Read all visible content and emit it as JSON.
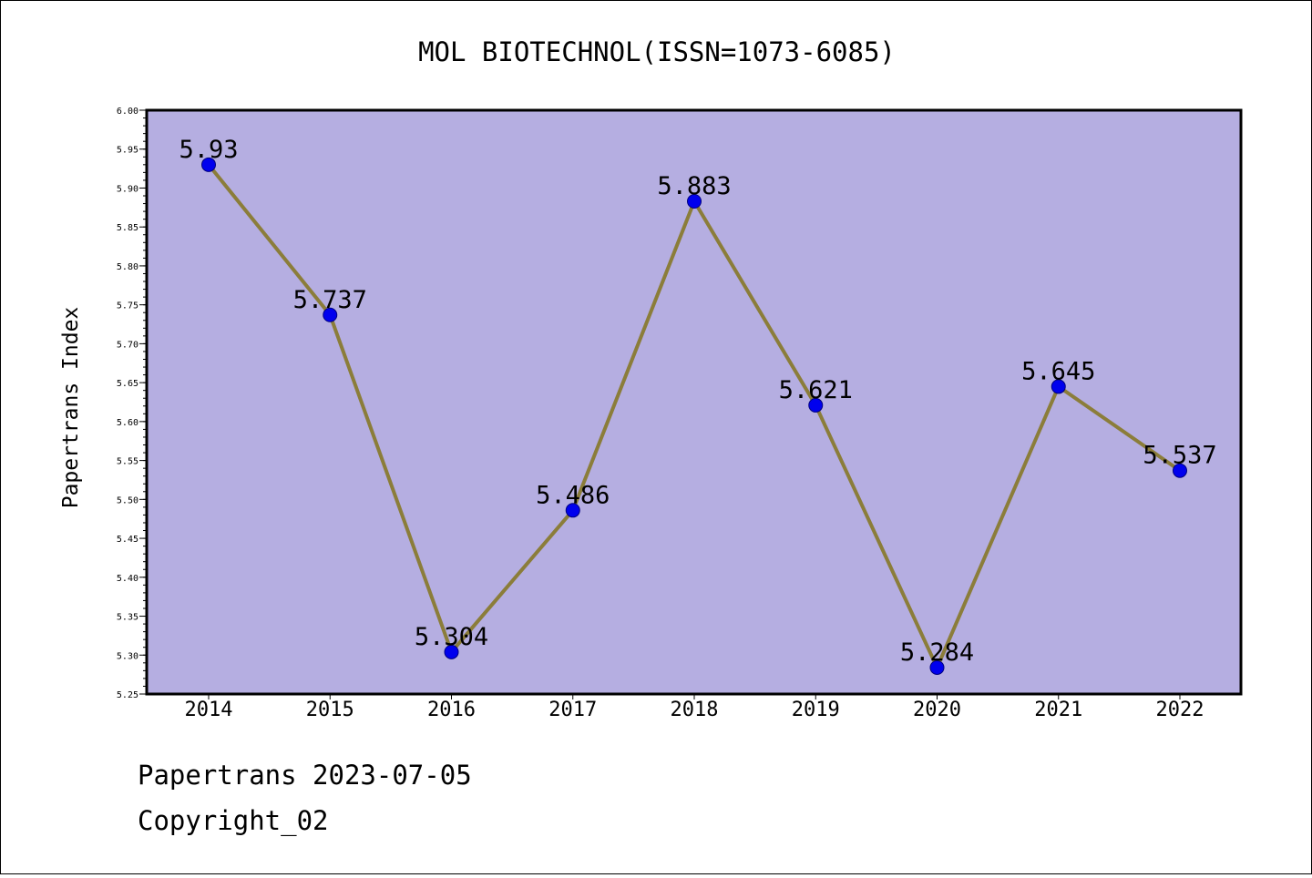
{
  "chart_data": {
    "type": "line",
    "title": "MOL BIOTECHNOL(ISSN=1073-6085)",
    "ylabel": "Papertrans Index",
    "xlabel": "",
    "categories": [
      "2014",
      "2015",
      "2016",
      "2017",
      "2018",
      "2019",
      "2020",
      "2021",
      "2022"
    ],
    "values": [
      5.93,
      5.737,
      5.304,
      5.486,
      5.883,
      5.621,
      5.284,
      5.645,
      5.537
    ],
    "data_labels": [
      "5.93",
      "5.737",
      "5.304",
      "5.486",
      "5.883",
      "5.621",
      "5.284",
      "5.645",
      "5.537"
    ],
    "ylim": [
      5.25,
      6.0
    ],
    "yticks": [
      "5.25",
      "5.30",
      "5.35",
      "5.40",
      "5.45",
      "5.50",
      "5.55",
      "5.60",
      "5.65",
      "5.70",
      "5.75",
      "5.80",
      "5.85",
      "5.90",
      "5.95",
      "6.00"
    ],
    "grid": false,
    "legend": "none"
  },
  "colors": {
    "plot_background": "#b5aee1",
    "line": "#8b7d3a",
    "marker": "#0000ee",
    "marker_edge": "#000080"
  },
  "footer": {
    "line1": "Papertrans 2023-07-05",
    "line2": "Copyright_02"
  }
}
